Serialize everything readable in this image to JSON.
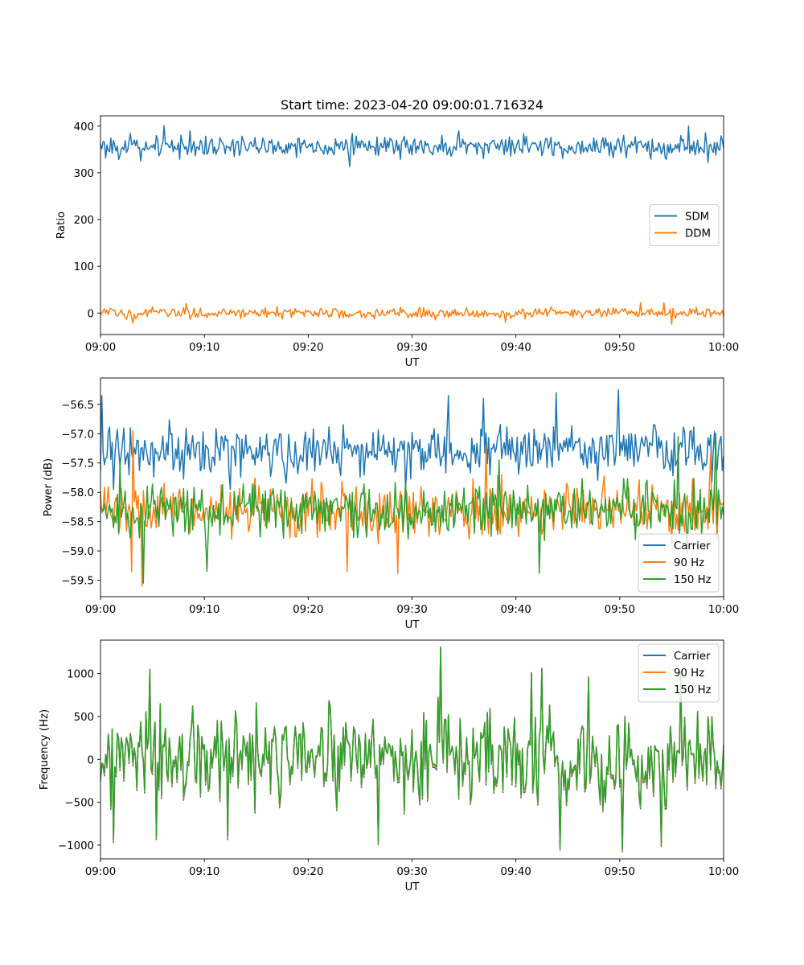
{
  "figure": {
    "title": "Start time: 2023-04-20 09:00:01.716324"
  },
  "colors": {
    "c1": "#1f77b4",
    "c2": "#ff7f0e",
    "c3": "#2ca02c"
  },
  "chart_data": [
    {
      "type": "line",
      "title": "Start time: 2023-04-20 09:00:01.716324",
      "xlabel": "UT",
      "ylabel": "Ratio",
      "x_tick_labels": [
        "09:00",
        "09:10",
        "09:20",
        "09:30",
        "09:40",
        "09:50",
        "10:00"
      ],
      "x_tick_minutes": [
        0,
        10,
        20,
        30,
        40,
        50,
        60
      ],
      "xlim": [
        0,
        60
      ],
      "ylim": [
        -46,
        422
      ],
      "y_ticks": [
        0,
        100,
        200,
        300,
        400
      ],
      "y_tick_labels": [
        "0",
        "100",
        "200",
        "300",
        "400"
      ],
      "legend_position": "center-right",
      "series": [
        {
          "name": "SDM",
          "color": "#1f77b4",
          "center": 357,
          "amplitude": 14,
          "spikes": [
            [
              6.1,
              401
            ],
            [
              7.6,
              329
            ],
            [
              24.0,
              313
            ],
            [
              56.6,
              400
            ],
            [
              58.5,
              322
            ],
            [
              3.9,
              325
            ],
            [
              34.5,
              390
            ],
            [
              8.6,
              390
            ]
          ]
        },
        {
          "name": "DDM",
          "color": "#ff7f0e",
          "center": 0,
          "amplitude": 7,
          "spikes": [
            [
              3.1,
              -22
            ],
            [
              8.2,
              20
            ],
            [
              17.0,
              14
            ],
            [
              39.0,
              -20
            ],
            [
              52.0,
              22
            ],
            [
              54.2,
              22
            ],
            [
              55.0,
              -24
            ],
            [
              13.5,
              -12
            ]
          ]
        }
      ]
    },
    {
      "type": "line",
      "xlabel": "UT",
      "ylabel": "Power (dB)",
      "x_tick_labels": [
        "09:00",
        "09:10",
        "09:20",
        "09:30",
        "09:40",
        "09:50",
        "10:00"
      ],
      "x_tick_minutes": [
        0,
        10,
        20,
        30,
        40,
        50,
        60
      ],
      "xlim": [
        0,
        60
      ],
      "ylim": [
        -59.78,
        -56.05
      ],
      "y_ticks": [
        -56.5,
        -57.0,
        -57.5,
        -58.0,
        -58.5,
        -59.0,
        -59.5
      ],
      "y_tick_labels": [
        "−56.5",
        "−57.0",
        "−57.5",
        "−58.0",
        "−58.5",
        "−59.0",
        "−59.5"
      ],
      "legend_position": "lower-right",
      "series": [
        {
          "name": "Carrier",
          "color": "#1f77b4",
          "center": -57.3,
          "amplitude": 0.28,
          "spikes": [
            [
              0.1,
              -56.35
            ],
            [
              49.9,
              -56.25
            ],
            [
              43.9,
              -56.3
            ],
            [
              33.5,
              -56.35
            ],
            [
              36.9,
              -56.4
            ],
            [
              1.2,
              -57.95
            ],
            [
              29.4,
              -57.95
            ],
            [
              12.5,
              -57.95
            ]
          ]
        },
        {
          "name": "90 Hz",
          "color": "#ff7f0e",
          "center": -58.3,
          "amplitude": 0.28,
          "spikes": [
            [
              4.0,
              -59.6
            ],
            [
              3.0,
              -59.35
            ],
            [
              28.6,
              -59.38
            ],
            [
              23.8,
              -59.35
            ],
            [
              3.1,
              -56.95
            ],
            [
              37.1,
              -57.2
            ],
            [
              58.7,
              -57.35
            ],
            [
              59.7,
              -58.2
            ]
          ]
        },
        {
          "name": "150 Hz",
          "color": "#2ca02c",
          "center": -58.3,
          "amplitude": 0.28,
          "spikes": [
            [
              4.1,
              -59.55
            ],
            [
              10.2,
              -59.35
            ],
            [
              42.3,
              -59.38
            ],
            [
              56.5,
              -59.05
            ],
            [
              55.6,
              -57.05
            ],
            [
              59.3,
              -57.0
            ],
            [
              38.4,
              -57.45
            ],
            [
              1.9,
              -57.45
            ]
          ]
        }
      ]
    },
    {
      "type": "line",
      "xlabel": "UT",
      "ylabel": "Frequency (Hz)",
      "x_tick_labels": [
        "09:00",
        "09:10",
        "09:20",
        "09:30",
        "09:40",
        "09:50",
        "10:00"
      ],
      "x_tick_minutes": [
        0,
        10,
        20,
        30,
        40,
        50,
        60
      ],
      "xlim": [
        0,
        60
      ],
      "ylim": [
        -1160,
        1390
      ],
      "y_ticks": [
        1000,
        500,
        0,
        -500,
        -1000
      ],
      "y_tick_labels": [
        "1000",
        "500",
        "0",
        "−500",
        "−1000"
      ],
      "legend_position": "upper-right",
      "series": [
        {
          "name": "Carrier",
          "color": "#1f77b4",
          "offset": -38
        },
        {
          "name": "90 Hz",
          "color": "#ff7f0e",
          "offset": -19
        },
        {
          "name": "150 Hz",
          "color": "#2ca02c",
          "offset": 0
        }
      ],
      "base": {
        "center": 0,
        "amplitude": 330,
        "spikes": [
          [
            32.7,
            1300
          ],
          [
            4.7,
            1040
          ],
          [
            42.5,
            1050
          ],
          [
            41.5,
            1000
          ],
          [
            47.0,
            950
          ],
          [
            55.9,
            1000
          ],
          [
            44.2,
            -1020
          ],
          [
            50.3,
            -1040
          ],
          [
            1.2,
            -930
          ],
          [
            26.8,
            -960
          ],
          [
            12.3,
            -900
          ],
          [
            54.0,
            -980
          ],
          [
            5.4,
            -900
          ]
        ]
      }
    }
  ]
}
